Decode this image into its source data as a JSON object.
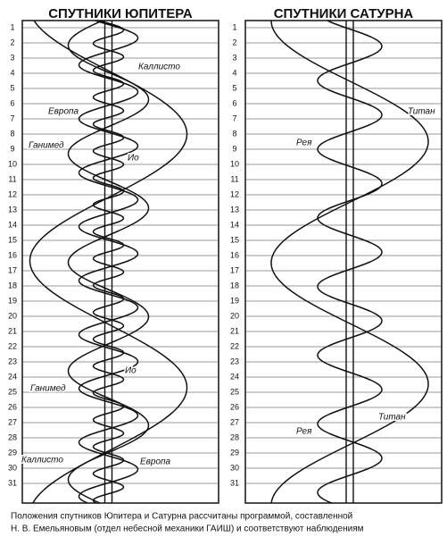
{
  "panels": [
    {
      "title": "СПУТНИКИ ЮПИТЕРА",
      "days": [
        "1",
        "2",
        "3",
        "4",
        "5",
        "6",
        "7",
        "8",
        "9",
        "10",
        "11",
        "12",
        "13",
        "14",
        "15",
        "16",
        "17",
        "18",
        "19",
        "20",
        "21",
        "22",
        "23",
        "24",
        "25",
        "26",
        "27",
        "28",
        "29",
        "30",
        "31"
      ],
      "labels": [
        "Каллисто",
        "Европа",
        "Ганимед",
        "Ио",
        "Ио",
        "Ганимед",
        "Каллисто",
        "Европа"
      ]
    },
    {
      "title": "СПУТНИКИ САТУРНА",
      "days": [
        "1",
        "2",
        "3",
        "4",
        "5",
        "6",
        "7",
        "8",
        "9",
        "10",
        "11",
        "12",
        "13",
        "14",
        "15",
        "16",
        "17",
        "18",
        "19",
        "20",
        "21",
        "22",
        "23",
        "24",
        "25",
        "26",
        "27",
        "28",
        "29",
        "30",
        "31"
      ],
      "labels": [
        "Титан",
        "Рея",
        "Титан",
        "Рея"
      ]
    }
  ],
  "caption": [
    "Положения спутников Юпитера и Сатурна рассчитаны программой, составленной",
    "Н. В. Емельяновым (отдел небесной механики ГАИШ) и соответствуют наблюдениям"
  ]
}
